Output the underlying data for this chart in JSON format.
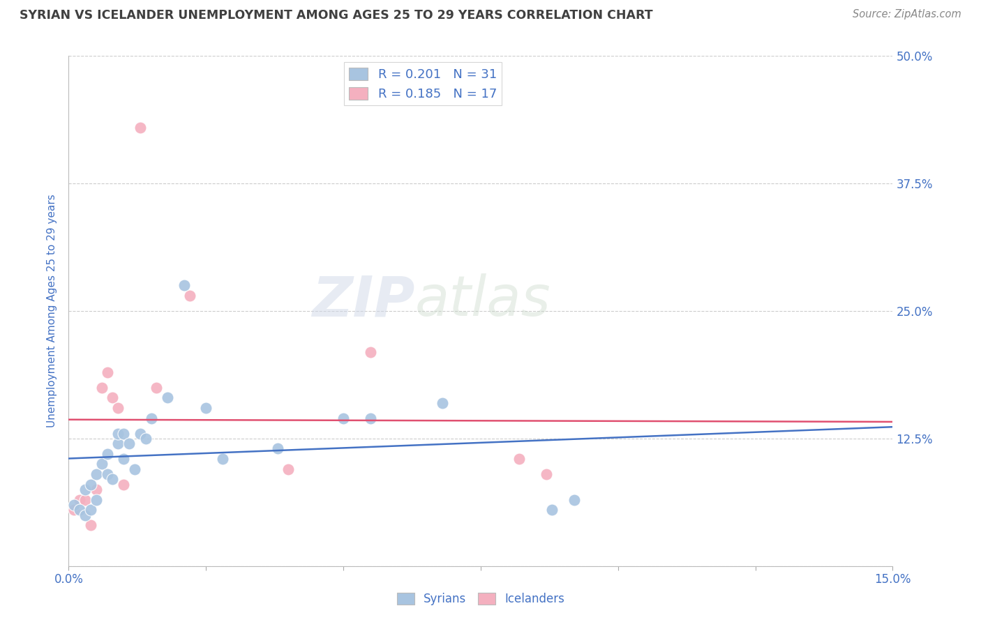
{
  "title": "SYRIAN VS ICELANDER UNEMPLOYMENT AMONG AGES 25 TO 29 YEARS CORRELATION CHART",
  "source": "Source: ZipAtlas.com",
  "ylabel": "Unemployment Among Ages 25 to 29 years",
  "xlim": [
    0.0,
    0.15
  ],
  "ylim": [
    0.0,
    0.5
  ],
  "xtick_positions": [
    0.0,
    0.025,
    0.05,
    0.075,
    0.1,
    0.125,
    0.15
  ],
  "xticklabels": [
    "0.0%",
    "",
    "",
    "",
    "",
    "",
    "15.0%"
  ],
  "ytick_positions": [
    0.0,
    0.125,
    0.25,
    0.375,
    0.5
  ],
  "yticklabels": [
    "",
    "12.5%",
    "25.0%",
    "37.5%",
    "50.0%"
  ],
  "legend_entries": [
    {
      "label": "R = 0.201   N = 31",
      "color": "#a8c4e0"
    },
    {
      "label": "R = 0.185   N = 17",
      "color": "#f4b0bf"
    }
  ],
  "watermark_zip": "ZIP",
  "watermark_atlas": "atlas",
  "syrians_x": [
    0.001,
    0.002,
    0.003,
    0.003,
    0.004,
    0.004,
    0.005,
    0.005,
    0.006,
    0.007,
    0.007,
    0.008,
    0.009,
    0.009,
    0.01,
    0.01,
    0.011,
    0.012,
    0.013,
    0.014,
    0.015,
    0.018,
    0.021,
    0.025,
    0.028,
    0.038,
    0.05,
    0.055,
    0.068,
    0.088,
    0.092
  ],
  "syrians_y": [
    0.06,
    0.055,
    0.05,
    0.075,
    0.055,
    0.08,
    0.065,
    0.09,
    0.1,
    0.09,
    0.11,
    0.085,
    0.12,
    0.13,
    0.105,
    0.13,
    0.12,
    0.095,
    0.13,
    0.125,
    0.145,
    0.165,
    0.275,
    0.155,
    0.105,
    0.115,
    0.145,
    0.145,
    0.16,
    0.055,
    0.065
  ],
  "icelanders_x": [
    0.001,
    0.002,
    0.003,
    0.004,
    0.005,
    0.006,
    0.007,
    0.008,
    0.009,
    0.01,
    0.013,
    0.016,
    0.022,
    0.04,
    0.055,
    0.082,
    0.087
  ],
  "icelanders_y": [
    0.055,
    0.065,
    0.065,
    0.04,
    0.075,
    0.175,
    0.19,
    0.165,
    0.155,
    0.08,
    0.43,
    0.175,
    0.265,
    0.095,
    0.21,
    0.105,
    0.09
  ],
  "syrian_line_color": "#4472c4",
  "icelander_line_color": "#e05070",
  "syrian_scatter_color": "#a8c4e0",
  "icelander_scatter_color": "#f4b0bf",
  "background_color": "#ffffff",
  "grid_color": "#cccccc",
  "title_color": "#404040",
  "axis_label_color": "#4472c4",
  "tick_label_color": "#4472c4",
  "source_color": "#888888"
}
